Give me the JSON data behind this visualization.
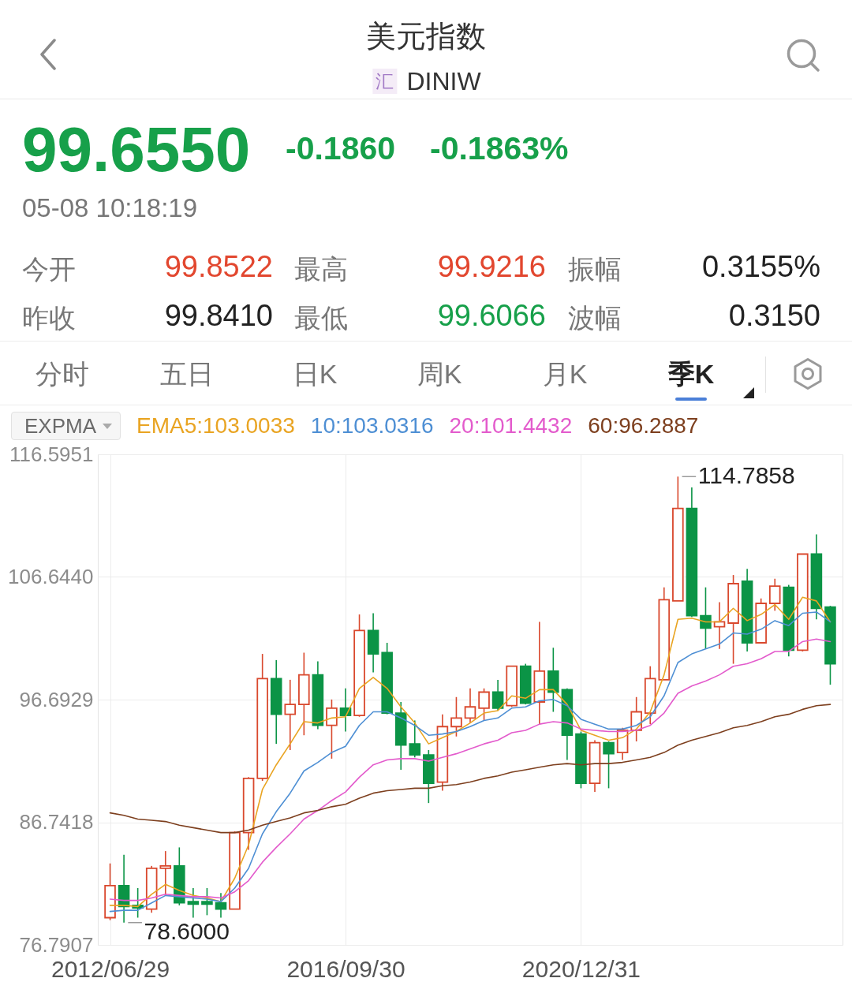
{
  "chart_data": {
    "type": "candlestick",
    "title": "美元指数",
    "subtitle": "DINIW",
    "legend_title": "EXPMA",
    "annotations": [
      "汇",
      "99.6550",
      "-0.1860",
      "-0.1863%",
      "05-08 10:18:19",
      "今开",
      "99.8522",
      "最高",
      "99.9216",
      "振幅",
      "0.3155%",
      "昨收",
      "99.8410",
      "最低",
      "99.6066",
      "波幅",
      "0.3150",
      "分时",
      "五日",
      "日K",
      "周K",
      "月K",
      "季K",
      "114.7858",
      "78.6000"
    ],
    "categories": [
      "2012/06/29",
      null,
      null,
      null,
      null,
      null,
      null,
      null,
      null,
      null,
      null,
      null,
      null,
      null,
      null,
      null,
      null,
      "2016/09/30",
      null,
      null,
      null,
      null,
      null,
      null,
      null,
      null,
      null,
      null,
      null,
      null,
      null,
      null,
      null,
      null,
      "2020/12/31",
      null,
      null,
      null,
      null,
      null,
      null,
      null,
      null,
      null,
      null,
      null,
      null,
      null,
      null,
      null,
      null,
      null,
      null
    ],
    "ohlc": [
      [
        79.0,
        83.4,
        78.8,
        81.6
      ],
      [
        81.6,
        84.1,
        78.6,
        79.9
      ],
      [
        80.0,
        81.4,
        79.0,
        79.8
      ],
      [
        79.7,
        83.2,
        79.4,
        83.0
      ],
      [
        83.0,
        84.4,
        80.8,
        83.2
      ],
      [
        83.2,
        84.7,
        80.0,
        80.2
      ],
      [
        80.3,
        81.4,
        79.0,
        80.1
      ],
      [
        80.3,
        81.4,
        79.2,
        80.1
      ],
      [
        80.2,
        81.0,
        79.0,
        79.7
      ],
      [
        79.7,
        86.0,
        79.7,
        85.9
      ],
      [
        85.9,
        90.4,
        84.5,
        90.3
      ],
      [
        90.3,
        100.4,
        90.1,
        98.4
      ],
      [
        98.4,
        99.9,
        93.1,
        95.5
      ],
      [
        95.5,
        98.3,
        92.6,
        96.3
      ],
      [
        96.3,
        100.5,
        93.8,
        98.7
      ],
      [
        98.7,
        99.8,
        94.3,
        94.6
      ],
      [
        94.6,
        96.7,
        91.9,
        96.0
      ],
      [
        96.0,
        97.6,
        94.1,
        95.4
      ],
      [
        95.4,
        103.6,
        95.3,
        102.3
      ],
      [
        102.3,
        103.7,
        98.9,
        100.4
      ],
      [
        100.5,
        101.3,
        95.5,
        95.6
      ],
      [
        95.6,
        96.5,
        91.0,
        93.0
      ],
      [
        93.1,
        95.0,
        92.0,
        92.2
      ],
      [
        92.2,
        92.6,
        88.3,
        89.9
      ],
      [
        90.0,
        95.5,
        89.3,
        94.5
      ],
      [
        94.5,
        96.9,
        93.7,
        95.2
      ],
      [
        95.2,
        97.6,
        94.8,
        96.1
      ],
      [
        96.0,
        97.6,
        95.0,
        97.3
      ],
      [
        97.3,
        98.3,
        95.8,
        96.0
      ],
      [
        96.2,
        99.4,
        96.1,
        99.4
      ],
      [
        99.4,
        99.6,
        96.3,
        96.4
      ],
      [
        96.5,
        103.0,
        94.7,
        99.0
      ],
      [
        99.0,
        100.9,
        95.7,
        97.3
      ],
      [
        97.5,
        97.6,
        91.8,
        93.8
      ],
      [
        93.9,
        94.1,
        89.5,
        89.9
      ],
      [
        89.9,
        93.4,
        89.2,
        93.2
      ],
      [
        93.2,
        93.3,
        89.5,
        92.3
      ],
      [
        92.4,
        94.4,
        91.8,
        94.2
      ],
      [
        94.2,
        96.9,
        93.3,
        95.7
      ],
      [
        95.6,
        99.4,
        94.7,
        98.4
      ],
      [
        98.3,
        105.8,
        98.3,
        104.8
      ],
      [
        104.7,
        114.7858,
        104.7,
        112.2
      ],
      [
        112.2,
        113.9,
        103.4,
        103.5
      ],
      [
        103.5,
        105.8,
        100.8,
        102.5
      ],
      [
        102.6,
        104.6,
        100.8,
        103.0
      ],
      [
        102.9,
        106.8,
        99.6,
        106.1
      ],
      [
        106.3,
        107.3,
        100.6,
        101.3
      ],
      [
        101.3,
        104.9,
        101.3,
        104.5
      ],
      [
        104.5,
        106.5,
        103.9,
        105.9
      ],
      [
        105.8,
        106.0,
        100.2,
        100.7
      ],
      [
        100.7,
        108.5,
        100.6,
        108.5
      ],
      [
        108.5,
        110.1,
        103.2,
        104.1
      ],
      [
        104.2,
        104.3,
        97.9,
        99.6
      ]
    ],
    "colors": [
      "#d9482d",
      "#0b9446",
      "#0b9446",
      "#d9482d",
      "#d9482d",
      "#0b9446",
      "#0b9446",
      "#0b9446",
      "#0b9446",
      "#d9482d",
      "#d9482d",
      "#d9482d",
      "#0b9446",
      "#d9482d",
      "#d9482d",
      "#0b9446",
      "#d9482d",
      "#0b9446",
      "#d9482d",
      "#0b9446",
      "#0b9446",
      "#0b9446",
      "#0b9446",
      "#0b9446",
      "#d9482d",
      "#d9482d",
      "#d9482d",
      "#d9482d",
      "#0b9446",
      "#d9482d",
      "#0b9446",
      "#d9482d",
      "#0b9446",
      "#0b9446",
      "#0b9446",
      "#d9482d",
      "#0b9446",
      "#d9482d",
      "#d9482d",
      "#d9482d",
      "#d9482d",
      "#d9482d",
      "#0b9446",
      "#0b9446",
      "#d9482d",
      "#d9482d",
      "#0b9446",
      "#d9482d",
      "#d9482d",
      "#0b9446",
      "#d9482d",
      "#0b9446",
      "#0b9446"
    ],
    "series": [
      {
        "name": "EMA5:103.0033",
        "type": "line",
        "color": "#e9a422",
        "values": [
          80.0,
          80.0,
          79.9,
          80.9,
          81.7,
          81.2,
          80.8,
          80.6,
          80.3,
          82.2,
          84.9,
          89.4,
          91.4,
          93.1,
          94.9,
          94.8,
          95.2,
          95.3,
          97.6,
          98.5,
          97.6,
          96.1,
          94.8,
          93.1,
          93.6,
          94.1,
          94.8,
          95.6,
          95.8,
          97.0,
          96.8,
          97.5,
          97.5,
          96.3,
          94.2,
          93.8,
          93.4,
          93.6,
          94.3,
          95.7,
          98.7,
          103.2,
          103.3,
          103.0,
          103.0,
          104.1,
          103.1,
          103.6,
          104.4,
          103.2,
          105.0,
          104.7,
          103.0
        ]
      },
      {
        "name": "10:103.0316",
        "type": "line",
        "color": "#4e8fd4",
        "values": [
          79.5,
          79.6,
          79.6,
          80.2,
          80.8,
          80.7,
          80.6,
          80.5,
          80.3,
          81.4,
          83.0,
          85.8,
          87.6,
          89.1,
          90.9,
          91.6,
          92.4,
          92.9,
          94.6,
          95.7,
          95.7,
          95.2,
          94.6,
          93.8,
          93.9,
          94.1,
          94.5,
          95.0,
          95.2,
          96.0,
          96.1,
          96.6,
          96.7,
          96.2,
          95.1,
          94.7,
          94.3,
          94.3,
          94.6,
          95.3,
          97.0,
          99.7,
          100.4,
          100.8,
          101.2,
          102.1,
          102.0,
          102.4,
          103.1,
          102.7,
          103.7,
          103.8,
          103.0
        ]
      },
      {
        "name": "20:101.4432",
        "type": "line",
        "color": "#e35bcc",
        "values": [
          80.5,
          80.4,
          80.4,
          80.6,
          80.9,
          80.8,
          80.7,
          80.7,
          80.6,
          81.1,
          82.0,
          83.5,
          84.7,
          85.8,
          87.0,
          87.7,
          88.5,
          89.2,
          90.4,
          91.4,
          91.8,
          91.9,
          91.9,
          91.7,
          92.0,
          92.3,
          92.7,
          93.1,
          93.4,
          94.0,
          94.2,
          94.7,
          94.9,
          94.8,
          94.3,
          94.2,
          94.1,
          94.1,
          94.2,
          94.6,
          95.6,
          97.2,
          97.8,
          98.2,
          98.7,
          99.4,
          99.6,
          100.0,
          100.6,
          100.6,
          101.4,
          101.6,
          101.4
        ]
      },
      {
        "name": "60:96.2887",
        "type": "line",
        "color": "#7d3f1e",
        "values": [
          87.5,
          87.3,
          87.0,
          86.9,
          86.8,
          86.5,
          86.3,
          86.1,
          85.9,
          85.9,
          86.1,
          86.5,
          86.8,
          87.1,
          87.5,
          87.7,
          88.0,
          88.2,
          88.7,
          89.1,
          89.3,
          89.4,
          89.5,
          89.5,
          89.7,
          89.8,
          90.0,
          90.3,
          90.5,
          90.8,
          91.0,
          91.2,
          91.4,
          91.5,
          91.4,
          91.5,
          91.5,
          91.6,
          91.8,
          92.0,
          92.4,
          93.0,
          93.4,
          93.7,
          94.0,
          94.4,
          94.6,
          94.9,
          95.3,
          95.5,
          95.9,
          96.2,
          96.3
        ]
      }
    ],
    "ylim": [
      76.7907,
      116.5951
    ],
    "yticks": [
      116.5951,
      {
        "value": 106.644,
        "label": "106.6440"
      },
      96.6929,
      86.7418,
      76.7907
    ],
    "grid": true,
    "legend": "top left"
  }
}
